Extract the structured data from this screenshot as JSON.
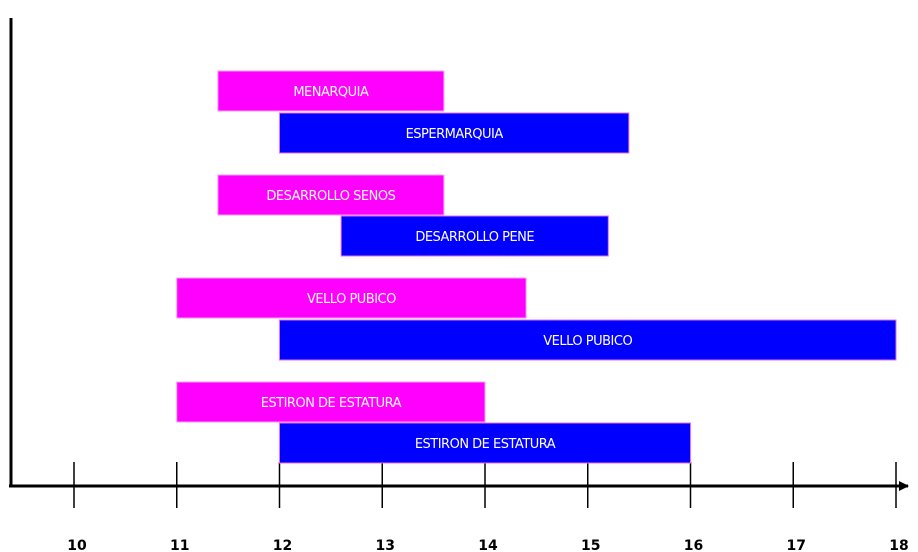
{
  "colors": {
    "pink": "#ff00ff",
    "blue": "#0000ff",
    "axis": "#000000"
  },
  "chart_data": {
    "type": "bar",
    "orientation": "horizontal-range",
    "title": "",
    "xlabel": "",
    "ylabel": "",
    "xlim": [
      9.4,
      18.1
    ],
    "x_ticks": [
      10,
      11,
      12,
      13,
      14,
      15,
      16,
      17,
      18
    ],
    "x_tick_labels": [
      "10",
      "11",
      "12",
      "13",
      "14",
      "15",
      "16",
      "17",
      "18"
    ],
    "grid": false,
    "bars": [
      {
        "label": "MENARQUIA",
        "start": 11.4,
        "end": 13.6,
        "color": "pink"
      },
      {
        "label": "ESPERMARQUIA",
        "start": 12.0,
        "end": 15.4,
        "color": "blue"
      },
      {
        "label": "DESARROLLO SENOS",
        "start": 11.4,
        "end": 13.6,
        "color": "pink"
      },
      {
        "label": "DESARROLLO PENE",
        "start": 12.6,
        "end": 15.2,
        "color": "blue"
      },
      {
        "label": "VELLO PUBICO",
        "start": 11.0,
        "end": 14.4,
        "color": "pink"
      },
      {
        "label": "VELLO PUBICO",
        "start": 12.0,
        "end": 18.0,
        "color": "blue"
      },
      {
        "label": "ESTIRON DE ESTATURA",
        "start": 11.0,
        "end": 14.0,
        "color": "pink"
      },
      {
        "label": "ESTIRON DE ESTATURA",
        "start": 12.0,
        "end": 16.0,
        "color": "blue"
      }
    ]
  }
}
